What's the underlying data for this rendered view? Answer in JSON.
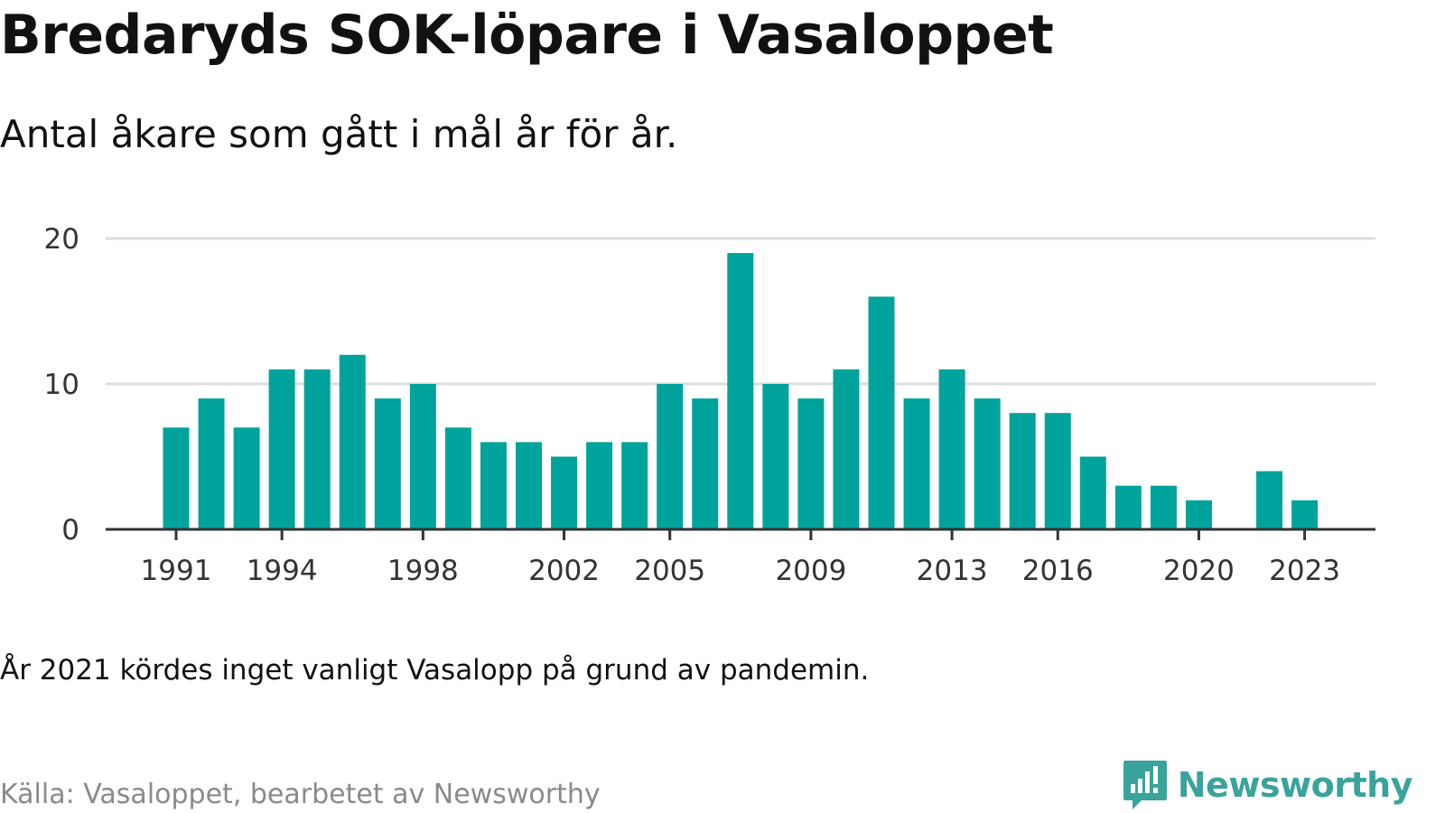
{
  "header": {
    "title": "Bredaryds SOK-löpare i Vasaloppet",
    "subtitle": "Antal åkare som gått i mål år för år."
  },
  "footer": {
    "note": "År 2021 kördes inget vanligt Vasalopp på grund av pandemin.",
    "source": "Källa: Vasaloppet, bearbetet av Newsworthy",
    "brand": "Newsworthy",
    "brand_icon": "chart-speech-bubble-icon"
  },
  "colors": {
    "bar": "#00a39b",
    "grid": "#dddddd",
    "axis": "#333333",
    "brand": "#3aa39b"
  },
  "chart_data": {
    "type": "bar",
    "title": "Bredaryds SOK-löpare i Vasaloppet",
    "subtitle": "Antal åkare som gått i mål år för år.",
    "xlabel": "",
    "ylabel": "",
    "categories": [
      1991,
      1992,
      1993,
      1994,
      1995,
      1996,
      1997,
      1998,
      1999,
      2000,
      2001,
      2002,
      2003,
      2004,
      2005,
      2006,
      2007,
      2008,
      2009,
      2010,
      2011,
      2012,
      2013,
      2014,
      2015,
      2016,
      2017,
      2018,
      2019,
      2020,
      2021,
      2022,
      2023
    ],
    "values": [
      7,
      9,
      7,
      11,
      11,
      12,
      9,
      10,
      7,
      6,
      6,
      5,
      6,
      6,
      10,
      9,
      19,
      10,
      9,
      11,
      16,
      9,
      11,
      9,
      8,
      8,
      5,
      3,
      3,
      2,
      null,
      4,
      2
    ],
    "x_tick_labels": [
      "1991",
      "1994",
      "1998",
      "2002",
      "2005",
      "2009",
      "2013",
      "2016",
      "2020",
      "2023"
    ],
    "y_ticks": [
      0,
      10,
      20
    ],
    "ylim": [
      0,
      20
    ],
    "grid": true,
    "legend": "none"
  }
}
